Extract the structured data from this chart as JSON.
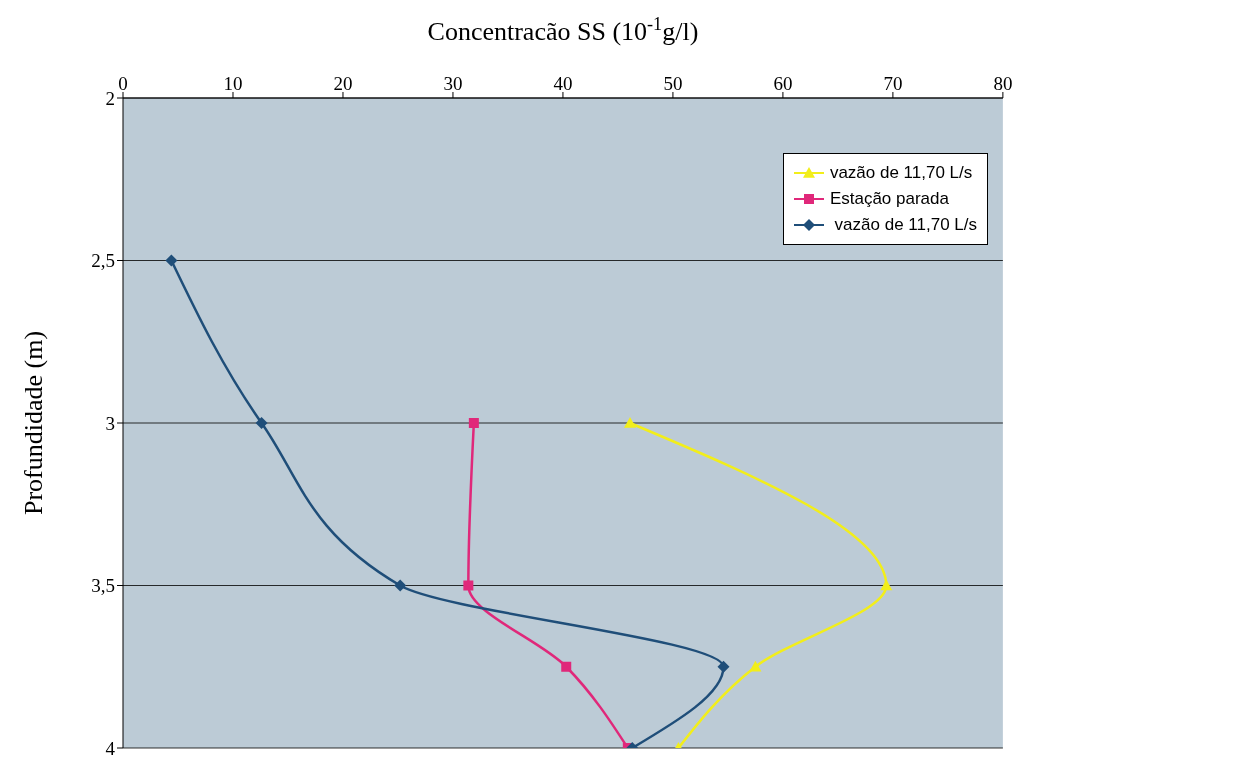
{
  "chart_data": {
    "type": "line",
    "xlabel": "Concentracão SS (10$^{-1}$g/l)",
    "ylabel": "Profundidade (m)",
    "xlim": [
      0,
      80
    ],
    "xticks": [
      0,
      10,
      20,
      30,
      40,
      50,
      60,
      70,
      80
    ],
    "ylim": [
      4,
      2
    ],
    "yticks": [
      2,
      {
        "value": 2.5,
        "label": "2,5"
      },
      3,
      {
        "value": 3.5,
        "label": "3,5"
      },
      4
    ],
    "grid": "y",
    "legend": "top right",
    "line_style": "solid",
    "series": [
      {
        "name": "vazão de 11,70 L/s",
        "color": "#f2ee1a",
        "marker": "triangle",
        "x": [
          46.1,
          69.4,
          57.5,
          50.5
        ],
        "values": [
          3,
          3.5,
          3.75,
          4
        ]
      },
      {
        "name": "Estação parada",
        "color": "#e0287a",
        "marker": "square",
        "x": [
          31.9,
          31.4,
          40.3,
          45.9
        ],
        "values": [
          3,
          3.5,
          3.75,
          4
        ]
      },
      {
        "name": " vazão de 11,70 L/s",
        "color": "#1f4e79",
        "marker": "diamond",
        "x": [
          4.4,
          12.6,
          25.2,
          54.6,
          46.3
        ],
        "values": [
          2.5,
          3,
          3.5,
          3.75,
          4
        ]
      }
    ]
  }
}
